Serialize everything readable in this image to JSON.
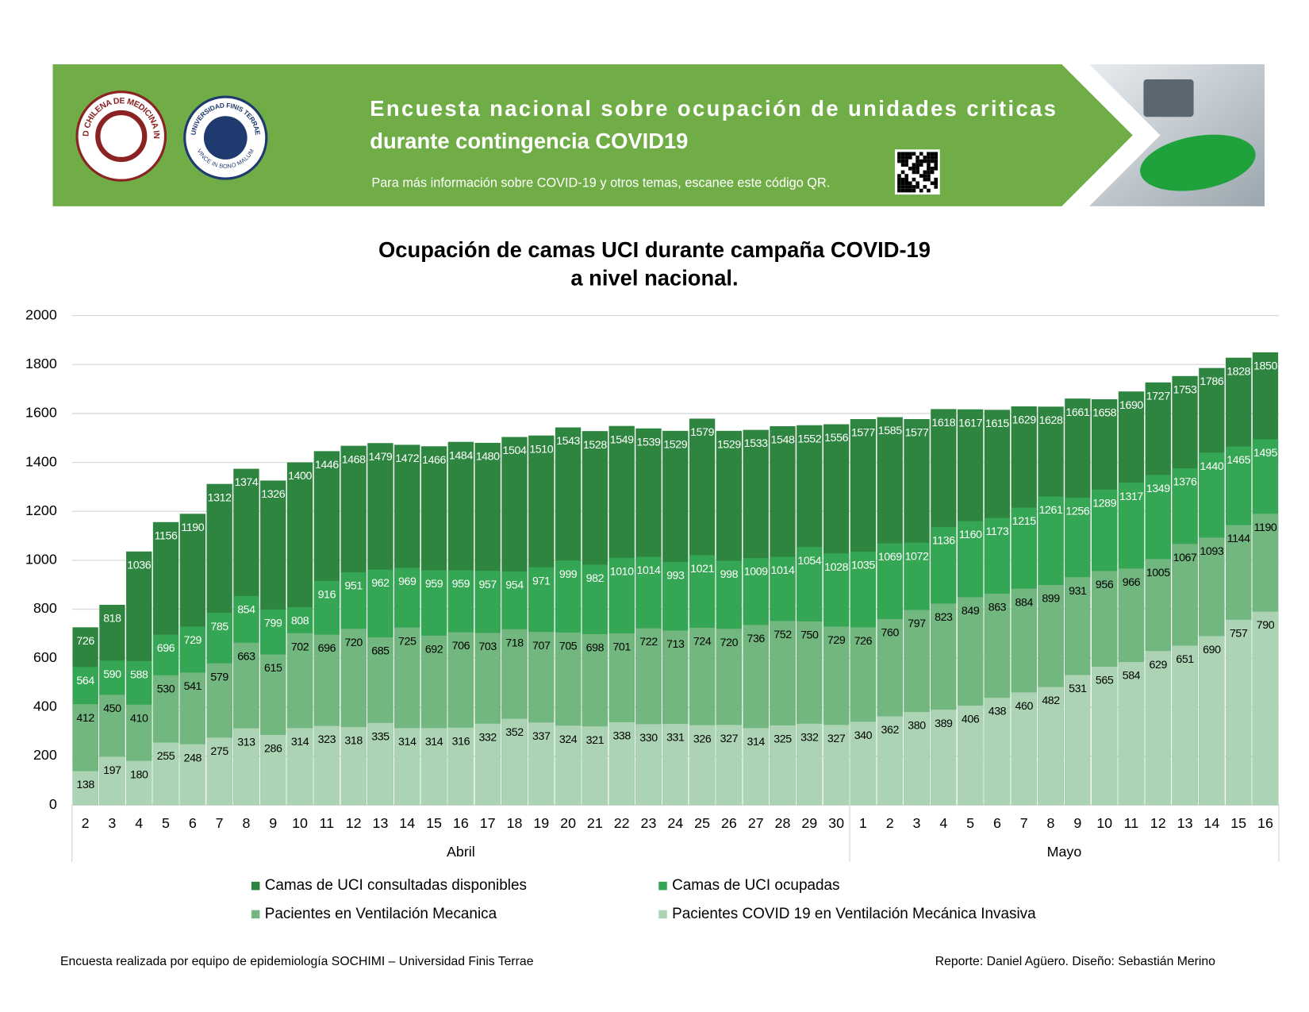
{
  "header": {
    "title_lines": [
      "Encuesta nacional sobre ocupación de unidades criticas",
      "durante contingencia COVID19"
    ],
    "subtitle": "Para más información sobre COVID-19 y otros temas, escanee este código QR.",
    "logo_1": "SOCIEDAD CHILENA DE MEDICINA INTENSIVA",
    "logo_2": "UNIVERSIDAD FINIS TERRAE",
    "logo_2_motto": "VINCE IN BONO MALUM"
  },
  "chart_data": {
    "type": "bar",
    "title_lines": [
      "Ocupación de camas UCI durante campaña COVID-19",
      "a nivel nacional."
    ],
    "groups": [
      {
        "name": "Abril",
        "categories": [
          "2",
          "3",
          "4",
          "5",
          "6",
          "7",
          "8",
          "9",
          "10",
          "11",
          "12",
          "13",
          "14",
          "15",
          "16",
          "17",
          "18",
          "19",
          "20",
          "21",
          "22",
          "23",
          "24",
          "25",
          "26",
          "27",
          "28",
          "29",
          "30"
        ]
      },
      {
        "name": "Mayo",
        "categories": [
          "1",
          "2",
          "3",
          "4",
          "5",
          "6",
          "7",
          "8",
          "9",
          "10",
          "11",
          "12",
          "13",
          "14",
          "15",
          "16"
        ]
      }
    ],
    "series": [
      {
        "name": "Camas de UCI consultadas disponibles",
        "color": "#2e8540",
        "label_color": "#ffffff",
        "values": [
          726,
          818,
          1036,
          1156,
          1190,
          1312,
          1374,
          1326,
          1400,
          1446,
          1468,
          1479,
          1472,
          1466,
          1484,
          1480,
          1504,
          1510,
          1543,
          1528,
          1549,
          1539,
          1529,
          1579,
          1529,
          1533,
          1548,
          1552,
          1556,
          1577,
          1585,
          1577,
          1618,
          1617,
          1615,
          1629,
          1628,
          1661,
          1658,
          1690,
          1727,
          1753,
          1786,
          1828,
          1850
        ]
      },
      {
        "name": "Camas de UCI ocupadas",
        "color": "#35a653",
        "label_color": "#ffffff",
        "values": [
          564,
          590,
          588,
          696,
          729,
          785,
          854,
          799,
          808,
          916,
          951,
          962,
          969,
          959,
          959,
          957,
          954,
          971,
          999,
          982,
          1010,
          1014,
          993,
          1021,
          998,
          1009,
          1014,
          1054,
          1028,
          1035,
          1069,
          1072,
          1136,
          1160,
          1173,
          1215,
          1261,
          1256,
          1289,
          1317,
          1349,
          1376,
          1440,
          1465,
          1495
        ]
      },
      {
        "name": "Pacientes en Ventilación Mecanica",
        "color": "#72b77f",
        "label_color": "#000000",
        "values": [
          412,
          450,
          410,
          530,
          541,
          579,
          663,
          615,
          702,
          696,
          720,
          685,
          725,
          692,
          706,
          703,
          718,
          707,
          705,
          698,
          701,
          722,
          713,
          724,
          720,
          736,
          752,
          750,
          729,
          726,
          760,
          797,
          823,
          849,
          863,
          884,
          899,
          931,
          956,
          966,
          1005,
          1067,
          1093,
          1144,
          1190
        ]
      },
      {
        "name": "Pacientes COVID 19 en Ventilación Mecánica Invasiva",
        "color": "#acd4b4",
        "label_color": "#000000",
        "values": [
          138,
          197,
          180,
          255,
          248,
          275,
          313,
          286,
          314,
          323,
          318,
          335,
          314,
          314,
          316,
          332,
          352,
          337,
          324,
          321,
          338,
          330,
          331,
          326,
          327,
          314,
          325,
          332,
          327,
          340,
          362,
          380,
          389,
          406,
          438,
          460,
          482,
          531,
          565,
          584,
          629,
          651,
          690,
          757,
          790
        ]
      }
    ],
    "ylim": [
      0,
      2000
    ],
    "yticks": [
      0,
      200,
      400,
      600,
      800,
      1000,
      1200,
      1400,
      1600,
      1800,
      2000
    ],
    "grid": true
  },
  "footer": {
    "left": "Encuesta realizada por equipo de epidemiología SOCHIMI – Universidad Finis Terrae",
    "right": "Reporte: Daniel Agüero. Diseño: Sebastián Merino"
  }
}
